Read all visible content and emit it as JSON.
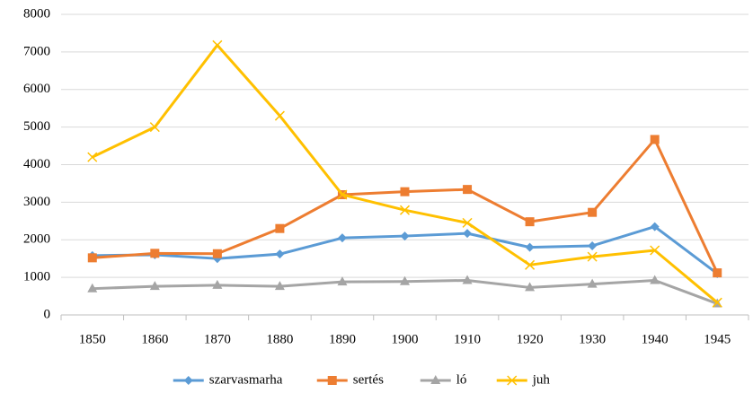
{
  "chart_data": {
    "type": "line",
    "categories": [
      "1850",
      "1860",
      "1870",
      "1880",
      "1890",
      "1900",
      "1910",
      "1920",
      "1930",
      "1940",
      "1945"
    ],
    "series": [
      {
        "name": "szarvasmarha",
        "color": "#5b9bd5",
        "marker": "diamond",
        "values": [
          1580,
          1600,
          1500,
          1620,
          2050,
          2100,
          2170,
          1800,
          1840,
          2350,
          1100
        ]
      },
      {
        "name": "sertés",
        "color": "#ed7d31",
        "marker": "square",
        "values": [
          1520,
          1640,
          1630,
          2300,
          3200,
          3280,
          3340,
          2480,
          2730,
          4670,
          1120
        ]
      },
      {
        "name": "ló",
        "color": "#a5a5a5",
        "marker": "triangle",
        "values": [
          700,
          760,
          790,
          760,
          880,
          890,
          920,
          730,
          820,
          920,
          300
        ]
      },
      {
        "name": "juh",
        "color": "#ffc000",
        "marker": "x",
        "values": [
          4200,
          5000,
          7180,
          5300,
          3200,
          2790,
          2450,
          1330,
          1550,
          1720,
          330
        ]
      }
    ],
    "ylim": [
      0,
      8000
    ],
    "yticks": [
      0,
      1000,
      2000,
      3000,
      4000,
      5000,
      6000,
      7000,
      8000
    ],
    "grid": true,
    "legend": "bottom"
  }
}
